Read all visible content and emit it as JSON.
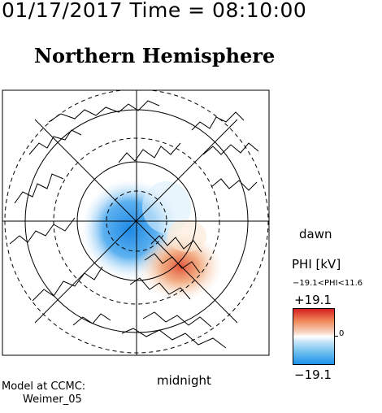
{
  "header": {
    "timestamp": "01/17/2017 Time = 08:10:00",
    "title": "Northern Hemisphere"
  },
  "map_labels": {
    "dawn": "dawn",
    "midnight": "midnight"
  },
  "credits": {
    "line1": "Model at CCMC:",
    "line2": "Weimer_05"
  },
  "colorbar": {
    "quantity_label": "PHI [kV]",
    "range_text": "−19.1<PHI<11.6",
    "max_label": "+19.1",
    "zero_label": "0",
    "min_label": "−19.1",
    "max_color": "#d61f1f",
    "min_color": "#1e90ea"
  },
  "potential_cells": {
    "negative_color": "#3a9ef0",
    "positive_color": "#e8653a"
  }
}
